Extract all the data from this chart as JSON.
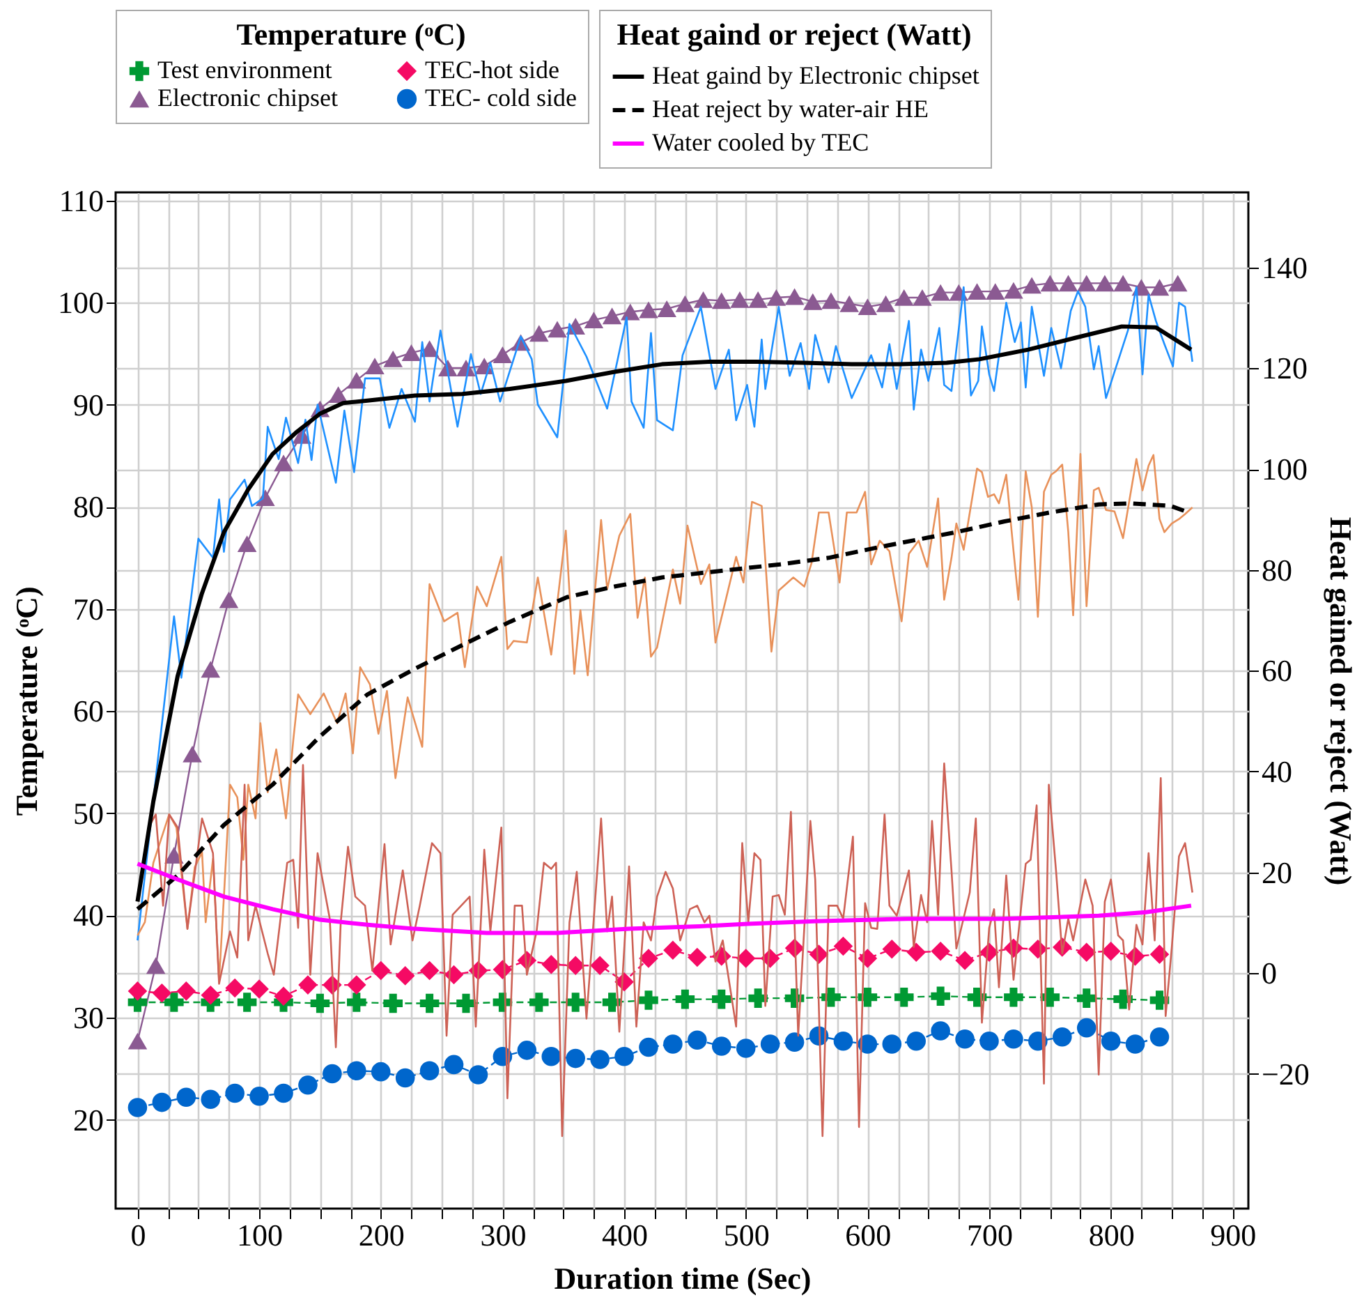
{
  "chart_data": {
    "type": "line",
    "xlabel": "Duration time (Sec)",
    "ylabel": "Temperature (ᵒC)",
    "y2label": "Heat gained or reject (Watt)",
    "legend_title": "Temperature (ᵒC)",
    "annotations": [
      "Heat gaind or reject (Watt)"
    ],
    "legend": "top",
    "grid": true,
    "xlim": [
      -18,
      913
    ],
    "xticks": [
      0,
      {
        "value": 25,
        "label": null
      },
      {
        "value": 50,
        "label": null
      },
      {
        "value": 75,
        "label": null
      },
      100,
      {
        "value": 125,
        "label": null
      },
      {
        "value": 150,
        "label": null
      },
      {
        "value": 175,
        "label": null
      },
      200,
      {
        "value": 225,
        "label": null
      },
      {
        "value": 250,
        "label": null
      },
      {
        "value": 275,
        "label": null
      },
      300,
      {
        "value": 325,
        "label": null
      },
      {
        "value": 350,
        "label": null
      },
      {
        "value": 375,
        "label": null
      },
      400,
      {
        "value": 425,
        "label": null
      },
      {
        "value": 450,
        "label": null
      },
      {
        "value": 475,
        "label": null
      },
      500,
      {
        "value": 525,
        "label": null
      },
      {
        "value": 550,
        "label": null
      },
      {
        "value": 575,
        "label": null
      },
      600,
      {
        "value": 625,
        "label": null
      },
      {
        "value": 650,
        "label": null
      },
      {
        "value": 675,
        "label": null
      },
      700,
      {
        "value": 725,
        "label": null
      },
      {
        "value": 750,
        "label": null
      },
      {
        "value": 775,
        "label": null
      },
      800,
      {
        "value": 825,
        "label": null
      },
      {
        "value": 850,
        "label": null
      },
      {
        "value": 875,
        "label": null
      },
      900
    ],
    "ylim": [
      11.3,
      110.8
    ],
    "yticks": [
      20,
      30,
      40,
      50,
      60,
      70,
      80,
      90,
      100,
      110
    ],
    "y2lim": [
      -46.7,
      154.9
    ],
    "y2ticks": [
      -20,
      0,
      20,
      40,
      60,
      80,
      100,
      120,
      140
    ],
    "series": [
      {
        "name": "Test environment",
        "color": "#009933",
        "marker": "cross",
        "line_style": "dashed",
        "x": [
          0,
          30,
          60,
          90,
          120,
          150,
          180,
          210,
          240,
          270,
          300,
          330,
          360,
          390,
          420,
          450,
          480,
          510,
          540,
          570,
          600,
          630,
          660,
          690,
          720,
          750,
          780,
          810,
          840
        ],
        "values": [
          31.5,
          31.5,
          31.5,
          31.5,
          31.5,
          31.4,
          31.5,
          31.4,
          31.4,
          31.4,
          31.5,
          31.5,
          31.5,
          31.5,
          31.7,
          31.8,
          31.8,
          31.9,
          31.9,
          32.0,
          32.0,
          32.0,
          32.1,
          32.0,
          32.0,
          32.0,
          31.9,
          31.8,
          31.7
        ]
      },
      {
        "name": "Electronic chipset",
        "color": "#8b5a92",
        "marker": "triangle",
        "line_style": "solid",
        "x": [
          0,
          15,
          30,
          45,
          60,
          75,
          90,
          105,
          120,
          135,
          150,
          165,
          180,
          195,
          210,
          225,
          240,
          255,
          270,
          285,
          300,
          315,
          330,
          345,
          360,
          375,
          390,
          405,
          420,
          435,
          450,
          465,
          480,
          495,
          510,
          525,
          540,
          555,
          570,
          585,
          600,
          615,
          630,
          645,
          660,
          675,
          690,
          705,
          720,
          735,
          750,
          765,
          780,
          795,
          810,
          825,
          840,
          855
        ],
        "values": [
          27.7,
          35.1,
          45.9,
          55.8,
          64.1,
          70.9,
          76.4,
          80.9,
          84.3,
          87.0,
          89.6,
          91.0,
          92.4,
          93.8,
          94.5,
          95.1,
          95.5,
          93.6,
          93.6,
          93.8,
          94.9,
          96.1,
          97.0,
          97.4,
          97.7,
          98.3,
          98.7,
          99.1,
          99.3,
          99.4,
          99.9,
          100.3,
          100.2,
          100.3,
          100.3,
          100.5,
          100.6,
          100.1,
          100.2,
          99.9,
          99.6,
          99.9,
          100.5,
          100.5,
          101.0,
          101.0,
          101.1,
          101.1,
          101.2,
          101.7,
          101.9,
          101.9,
          101.9,
          101.9,
          101.9,
          101.5,
          101.5,
          101.9
        ]
      },
      {
        "name": "TEC-hot side",
        "color": "#f50a64",
        "marker": "diamond",
        "line_style": "dashed",
        "x": [
          0,
          20,
          40,
          60,
          80,
          100,
          120,
          140,
          160,
          180,
          200,
          220,
          240,
          260,
          280,
          300,
          320,
          340,
          360,
          380,
          400,
          420,
          440,
          460,
          480,
          500,
          520,
          540,
          560,
          580,
          600,
          620,
          640,
          660,
          680,
          700,
          720,
          740,
          760,
          780,
          800,
          820,
          840
        ],
        "values": [
          32.6,
          32.4,
          32.6,
          32.2,
          32.9,
          32.8,
          32.1,
          33.2,
          33.2,
          33.2,
          34.6,
          34.1,
          34.6,
          34.2,
          34.6,
          34.7,
          35.6,
          35.2,
          35.1,
          35.1,
          33.5,
          35.8,
          36.6,
          35.9,
          36.0,
          35.8,
          35.8,
          36.8,
          36.2,
          37.0,
          35.8,
          36.7,
          36.4,
          36.5,
          35.6,
          36.4,
          36.8,
          36.7,
          36.9,
          36.4,
          36.5,
          36.0,
          36.2
        ]
      },
      {
        "name": "TEC- cold side",
        "color": "#0066cc",
        "marker": "circle",
        "line_style": "dashed",
        "x": [
          0,
          20,
          40,
          60,
          80,
          100,
          120,
          140,
          160,
          180,
          200,
          220,
          240,
          260,
          280,
          300,
          320,
          340,
          360,
          380,
          400,
          420,
          440,
          460,
          480,
          500,
          520,
          540,
          560,
          580,
          600,
          620,
          640,
          660,
          680,
          700,
          720,
          740,
          760,
          780,
          800,
          820,
          840
        ],
        "values": [
          21.2,
          21.7,
          22.2,
          22.0,
          22.6,
          22.3,
          22.6,
          23.4,
          24.5,
          24.8,
          24.7,
          24.1,
          24.8,
          25.4,
          24.4,
          26.2,
          26.8,
          26.2,
          26.0,
          25.9,
          26.2,
          27.1,
          27.4,
          27.8,
          27.2,
          27.0,
          27.4,
          27.6,
          28.2,
          27.7,
          27.4,
          27.4,
          27.7,
          28.7,
          27.9,
          27.7,
          27.9,
          27.7,
          28.1,
          29.0,
          27.7,
          27.4,
          28.1
        ]
      },
      {
        "name": "Heat gaind by Electronic chipset",
        "color": "#000000",
        "axis": "y2",
        "line_style": "solid",
        "x": [
          0,
          13,
          33,
          53,
          71,
          91,
          111,
          130,
          150,
          169,
          189,
          228,
          267,
          306,
          352,
          392,
          431,
          470,
          509,
          548,
          587,
          627,
          665,
          692,
          732,
          770,
          809,
          837,
          866
        ],
        "values": [
          14.2,
          34.1,
          59.0,
          75.4,
          87.5,
          96.0,
          103.0,
          107.2,
          111.0,
          113.1,
          113.6,
          114.6,
          114.9,
          115.9,
          117.5,
          119.3,
          120.8,
          121.3,
          121.3,
          121.1,
          120.8,
          120.8,
          121.1,
          121.8,
          123.7,
          126.0,
          128.3,
          128.1,
          123.7
        ]
      },
      {
        "name": "Heat reject by water-air HE",
        "color": "#000000",
        "axis": "y2",
        "line_style": "dashed",
        "x": [
          0,
          33,
          71,
          111,
          150,
          189,
          228,
          267,
          306,
          353,
          392,
          431,
          490,
          528,
          568,
          607,
          645,
          673,
          712,
          750,
          790,
          817,
          849,
          864
        ],
        "values": [
          12.7,
          19.4,
          29.4,
          37.4,
          47.0,
          55.3,
          60.4,
          65.1,
          69.7,
          74.6,
          76.7,
          78.5,
          80.1,
          81.1,
          82.4,
          84.4,
          86.2,
          87.5,
          89.6,
          91.4,
          93.0,
          93.2,
          92.7,
          91.4
        ]
      },
      {
        "name": "Water cooled by TEC",
        "color": "#ff00ff",
        "axis": "y2",
        "line_style": "solid",
        "x": [
          0,
          33,
          71,
          111,
          150,
          189,
          228,
          287,
          345,
          404,
          462,
          501,
          556,
          633,
          712,
          790,
          829,
          866
        ],
        "values": [
          21.7,
          18.6,
          15.2,
          12.7,
          10.6,
          9.6,
          8.8,
          8.0,
          8.0,
          8.8,
          9.3,
          9.8,
          10.3,
          10.8,
          10.8,
          11.4,
          12.1,
          13.4
        ]
      },
      {
        "color": "#1e90ff",
        "axis": "y2",
        "line_style": "solid",
        "x": [
          0,
          30,
          36,
          50,
          62,
          67,
          71,
          76,
          88,
          94,
          103,
          107,
          116,
          122,
          132,
          138,
          143,
          148,
          163,
          170,
          178,
          187,
          199,
          207,
          217,
          228,
          234,
          240,
          249,
          263,
          274,
          282,
          290,
          298,
          315,
          324,
          329,
          345,
          355,
          369,
          386,
          402,
          406,
          416,
          422,
          427,
          440,
          448,
          463,
          475,
          486,
          492,
          501,
          507,
          513,
          516,
          527,
          536,
          545,
          552,
          557,
          568,
          574,
          587,
          603,
          612,
          618,
          624,
          634,
          638,
          644,
          650,
          659,
          663,
          669,
          679,
          685,
          691,
          694,
          700,
          704,
          714,
          721,
          726,
          730,
          735,
          745,
          751,
          759,
          767,
          773,
          779,
          786,
          790,
          796,
          814,
          821,
          826,
          831,
          837,
          844,
          851,
          856,
          861,
          867
        ],
        "values": [
          6.5,
          70.8,
          58.6,
          86.2,
          82.4,
          94.0,
          83.6,
          94.0,
          97.9,
          92.7,
          94.2,
          108.4,
          102.0,
          110.2,
          101.2,
          109.8,
          101.8,
          112.8,
          97.3,
          111.6,
          99.4,
          118.0,
          118.0,
          108.2,
          115.9,
          109.4,
          125.2,
          113.4,
          127.5,
          108.4,
          122.8,
          114.9,
          121.1,
          113.4,
          126.3,
          121.8,
          112.8,
          106.3,
          128.8,
          122.3,
          112.0,
          130.1,
          113.4,
          108.2,
          127.0,
          109.7,
          107.7,
          122.6,
          132.2,
          115.9,
          123.7,
          109.7,
          116.7,
          108.4,
          125.7,
          115.9,
          132.2,
          118.5,
          125.0,
          115.9,
          126.6,
          117.2,
          124.4,
          114.1,
          122.6,
          116.2,
          124.8,
          115.9,
          129.4,
          111.8,
          123.7,
          117.5,
          128.0,
          116.7,
          115.5,
          136.1,
          114.6,
          117.5,
          128.3,
          118.8,
          115.5,
          133.0,
          125.2,
          129.1,
          116.2,
          132.2,
          118.5,
          128.0,
          120.0,
          131.4,
          135.3,
          132.2,
          119.8,
          124.4,
          114.1,
          127.5,
          136.1,
          118.8,
          134.6,
          129.4,
          124.8,
          120.4,
          133.0,
          132.2,
          121.3
        ]
      },
      {
        "color": "#e8915a",
        "axis": "y2",
        "line_style": "solid",
        "x": [
          0,
          6,
          13,
          26,
          32,
          41,
          47,
          53,
          56,
          62,
          67,
          71,
          76,
          82,
          87,
          91,
          97,
          101,
          107,
          114,
          122,
          128,
          132,
          142,
          153,
          164,
          171,
          177,
          183,
          191,
          198,
          205,
          212,
          222,
          234,
          240,
          252,
          263,
          269,
          279,
          287,
          299,
          304,
          309,
          320,
          329,
          340,
          352,
          359,
          364,
          370,
          381,
          386,
          396,
          405,
          411,
          417,
          422,
          427,
          440,
          446,
          452,
          463,
          470,
          475,
          492,
          498,
          505,
          513,
          521,
          527,
          539,
          548,
          554,
          560,
          568,
          577,
          583,
          591,
          598,
          603,
          610,
          618,
          628,
          634,
          642,
          649,
          658,
          663,
          669,
          673,
          679,
          690,
          694,
          699,
          704,
          708,
          714,
          720,
          724,
          730,
          735,
          740,
          745,
          751,
          755,
          760,
          765,
          769,
          775,
          780,
          786,
          790,
          796,
          803,
          810,
          815,
          821,
          826,
          831,
          835,
          840,
          844,
          850,
          856,
          861,
          867
        ],
        "values": [
          7.5,
          10.1,
          21.9,
          31.5,
          28.9,
          8.8,
          21.0,
          24.0,
          10.1,
          22.7,
          -1.5,
          15.2,
          37.4,
          34.9,
          22.5,
          37.4,
          30.7,
          49.6,
          35.9,
          44.4,
          30.7,
          46.2,
          55.3,
          51.4,
          55.5,
          49.6,
          55.5,
          43.6,
          60.7,
          57.3,
          47.5,
          56.0,
          38.7,
          54.7,
          44.9,
          77.2,
          69.8,
          71.5,
          60.7,
          76.7,
          72.8,
          82.6,
          64.3,
          65.9,
          65.6,
          78.5,
          63.2,
          87.8,
          59.4,
          72.0,
          59.1,
          89.9,
          76.2,
          86.8,
          91.1,
          70.5,
          78.5,
          62.8,
          64.6,
          80.1,
          73.3,
          88.8,
          77.2,
          81.1,
          65.6,
          82.6,
          77.5,
          93.5,
          92.7,
          63.8,
          75.9,
          78.5,
          76.7,
          81.4,
          91.4,
          91.4,
          77.5,
          91.4,
          91.4,
          95.5,
          81.1,
          85.8,
          83.7,
          69.8,
          83.2,
          85.8,
          80.6,
          94.2,
          74.1,
          82.4,
          89.2,
          84.0,
          100.1,
          99.4,
          94.5,
          95.0,
          93.2,
          98.9,
          83.7,
          74.1,
          99.6,
          92.4,
          70.7,
          95.5,
          98.9,
          99.6,
          100.9,
          87.5,
          71.0,
          103.0,
          72.8,
          95.8,
          96.3,
          91.9,
          91.6,
          86.3,
          93.5,
          102.0,
          95.8,
          100.7,
          102.8,
          90.1,
          87.5,
          89.2,
          90.1,
          91.1,
          92.4
        ]
      },
      {
        "color": "#cd6155",
        "axis": "y2",
        "line_style": "solid",
        "x": [
          0,
          9,
          15,
          21,
          26,
          33,
          41,
          53,
          62,
          67,
          76,
          82,
          88,
          91,
          97,
          107,
          112,
          123,
          128,
          132,
          136,
          142,
          148,
          158,
          163,
          167,
          173,
          179,
          187,
          193,
          203,
          208,
          218,
          226,
          232,
          242,
          249,
          254,
          259,
          273,
          278,
          285,
          290,
          299,
          304,
          310,
          316,
          320,
          328,
          334,
          340,
          344,
          349,
          355,
          361,
          369,
          381,
          386,
          390,
          396,
          404,
          410,
          416,
          422,
          427,
          434,
          440,
          446,
          454,
          460,
          466,
          470,
          475,
          481,
          492,
          497,
          502,
          507,
          512,
          516,
          522,
          527,
          532,
          537,
          543,
          553,
          557,
          563,
          568,
          575,
          580,
          588,
          593,
          598,
          603,
          608,
          614,
          618,
          624,
          634,
          638,
          644,
          649,
          653,
          658,
          663,
          669,
          673,
          684,
          689,
          694,
          700,
          704,
          708,
          714,
          720,
          730,
          734,
          739,
          745,
          749,
          755,
          760,
          765,
          769,
          779,
          785,
          790,
          795,
          800,
          806,
          810,
          815,
          821,
          826,
          831,
          836,
          841,
          845,
          850,
          856,
          861,
          867
        ],
        "values": [
          15.2,
          28.9,
          31.5,
          13.4,
          31.5,
          28.9,
          8.8,
          30.7,
          23.8,
          -2.1,
          8.3,
          3.1,
          37.4,
          6.5,
          13.4,
          3.9,
          -0.3,
          21.9,
          22.5,
          9.0,
          41.3,
          -0.3,
          23.8,
          10.8,
          -14.7,
          10.1,
          25.1,
          15.2,
          13.4,
          0.5,
          25.6,
          5.7,
          20.4,
          6.5,
          13.4,
          25.8,
          23.8,
          -12.4,
          11.6,
          15.2,
          -10.6,
          24.5,
          8.3,
          28.9,
          -24.8,
          13.4,
          13.4,
          -0.3,
          8.3,
          21.9,
          20.7,
          21.9,
          -32.3,
          10.1,
          20.1,
          -9.0,
          30.7,
          8.3,
          15.2,
          -11.6,
          21.2,
          -10.6,
          10.1,
          6.5,
          15.2,
          20.1,
          16.8,
          6.5,
          12.7,
          13.4,
          10.1,
          11.4,
          2.3,
          6.5,
          -10.6,
          25.8,
          10.1,
          23.8,
          22.5,
          -6.5,
          15.2,
          15.5,
          11.6,
          32.0,
          -12.4,
          30.2,
          18.6,
          -32.3,
          13.4,
          13.4,
          10.8,
          27.1,
          -30.5,
          13.9,
          9.0,
          8.8,
          31.5,
          13.4,
          11.4,
          20.4,
          5.2,
          15.5,
          10.1,
          30.2,
          11.6,
          41.6,
          20.4,
          4.9,
          16.0,
          30.7,
          -9.8,
          9.0,
          12.7,
          -2.8,
          19.4,
          -1.3,
          21.7,
          22.5,
          33.3,
          -21.9,
          37.4,
          20.1,
          3.9,
          10.8,
          6.5,
          18.6,
          13.4,
          -20.1,
          14.2,
          18.6,
          7.5,
          6.5,
          -7.2,
          9.6,
          5.7,
          23.8,
          6.5,
          38.7,
          -8.5,
          4.9,
          23.2,
          25.8,
          16.0
        ]
      }
    ]
  }
}
